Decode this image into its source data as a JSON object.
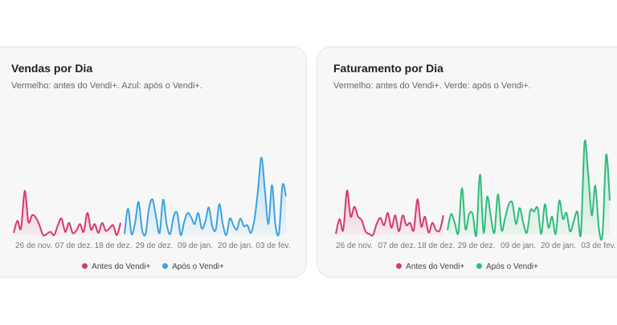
{
  "charts": [
    {
      "title": "Vendas por Dia",
      "subtitle": "Vermelho: antes do Vendi+. Azul: após o Vendi+.",
      "legend": [
        {
          "label": "Antes do Vendi+",
          "color": "#d63a68"
        },
        {
          "label": "Após o Vendi+",
          "color": "#3aa3e0"
        }
      ],
      "x_ticks": [
        "26 de nov.",
        "07 de dez.",
        "18 de dez.",
        "29 de dez.",
        "09 de jan.",
        "20 de jan.",
        "03 de fev."
      ]
    },
    {
      "title": "Faturamento por Dia",
      "subtitle": "Vermelho: antes do Vendi+. Verde: após o Vendi+.",
      "legend": [
        {
          "label": "Antes do Vendi+",
          "color": "#d63a68"
        },
        {
          "label": "Após o Vendi+",
          "color": "#2ebd7a"
        }
      ],
      "x_ticks": [
        "26 de nov.",
        "07 de dez.",
        "18 de dez.",
        "29 de dez.",
        "09 de jan.",
        "20 de jan.",
        "03 de fev."
      ]
    }
  ],
  "chart_data": [
    {
      "type": "area",
      "title": "Vendas por Dia",
      "ylim": [
        0,
        10
      ],
      "grid": false,
      "legend_position": "bottom",
      "x_tick_labels": [
        "26 de nov.",
        "07 de dez.",
        "18 de dez.",
        "29 de dez.",
        "09 de jan.",
        "20 de jan.",
        "03 de fev."
      ],
      "series": [
        {
          "name": "Antes do Vendi+",
          "color": "#d63a68",
          "values": [
            0.2,
            1.3,
            0.6,
            4.0,
            1.2,
            1.8,
            1.6,
            0.9,
            0.0,
            0.1,
            0.3,
            0.0,
            0.9,
            1.5,
            0.3,
            1.1,
            0.2,
            0.4,
            1.0,
            0.3,
            2.0,
            0.5,
            1.0,
            0.2,
            1.1,
            0.4,
            0.6,
            0.9,
            0.0,
            1.1
          ]
        },
        {
          "name": "Após o Vendi+",
          "color": "#3aa3e0",
          "values": [
            0.1,
            2.4,
            0.1,
            1.1,
            3.0,
            0.5,
            0.1,
            2.5,
            3.2,
            1.6,
            0.2,
            3.2,
            1.0,
            0.1,
            1.7,
            2.0,
            0.0,
            1.2,
            2.0,
            1.6,
            1.0,
            2.0,
            0.6,
            1.2,
            2.5,
            0.8,
            0.5,
            2.8,
            1.0,
            0.0,
            1.5,
            0.9,
            0.5,
            1.5,
            0.8,
            0.9,
            0.2,
            1.4,
            4.0,
            7.0,
            4.0,
            1.0,
            4.5,
            0.9,
            0.2,
            4.5,
            3.5
          ]
        }
      ]
    },
    {
      "type": "area",
      "title": "Faturamento por Dia",
      "ylim": [
        0,
        10
      ],
      "grid": false,
      "legend_position": "bottom",
      "x_tick_labels": [
        "26 de nov.",
        "07 de dez.",
        "18 de dez.",
        "29 de dez.",
        "09 de jan.",
        "20 de jan.",
        "03 de fev."
      ],
      "series": [
        {
          "name": "Antes do Vendi+",
          "color": "#d63a68",
          "values": [
            0.1,
            1.3,
            0.4,
            3.6,
            1.5,
            2.3,
            1.5,
            1.2,
            0.3,
            0.1,
            0.0,
            0.9,
            1.4,
            0.8,
            1.8,
            0.6,
            1.6,
            0.3,
            1.6,
            0.8,
            1.0,
            0.4,
            2.9,
            0.7,
            1.5,
            0.2,
            1.0,
            0.4,
            0.4,
            1.6
          ]
        },
        {
          "name": "Após o Vendi+",
          "color": "#2ebd7a",
          "values": [
            0.4,
            1.7,
            1.0,
            0.2,
            3.8,
            0.5,
            1.7,
            1.7,
            0.0,
            4.9,
            0.2,
            3.1,
            1.5,
            0.2,
            3.3,
            0.4,
            1.4,
            2.5,
            2.6,
            0.9,
            2.2,
            1.0,
            0.2,
            2.0,
            1.9,
            2.2,
            0.1,
            2.5,
            0.6,
            1.5,
            0.1,
            2.8,
            1.3,
            1.8,
            0.3,
            1.1,
            1.9,
            0.1,
            7.5,
            5.0,
            1.6,
            4.0,
            0.5,
            0.1,
            6.5,
            2.8
          ]
        }
      ]
    }
  ]
}
